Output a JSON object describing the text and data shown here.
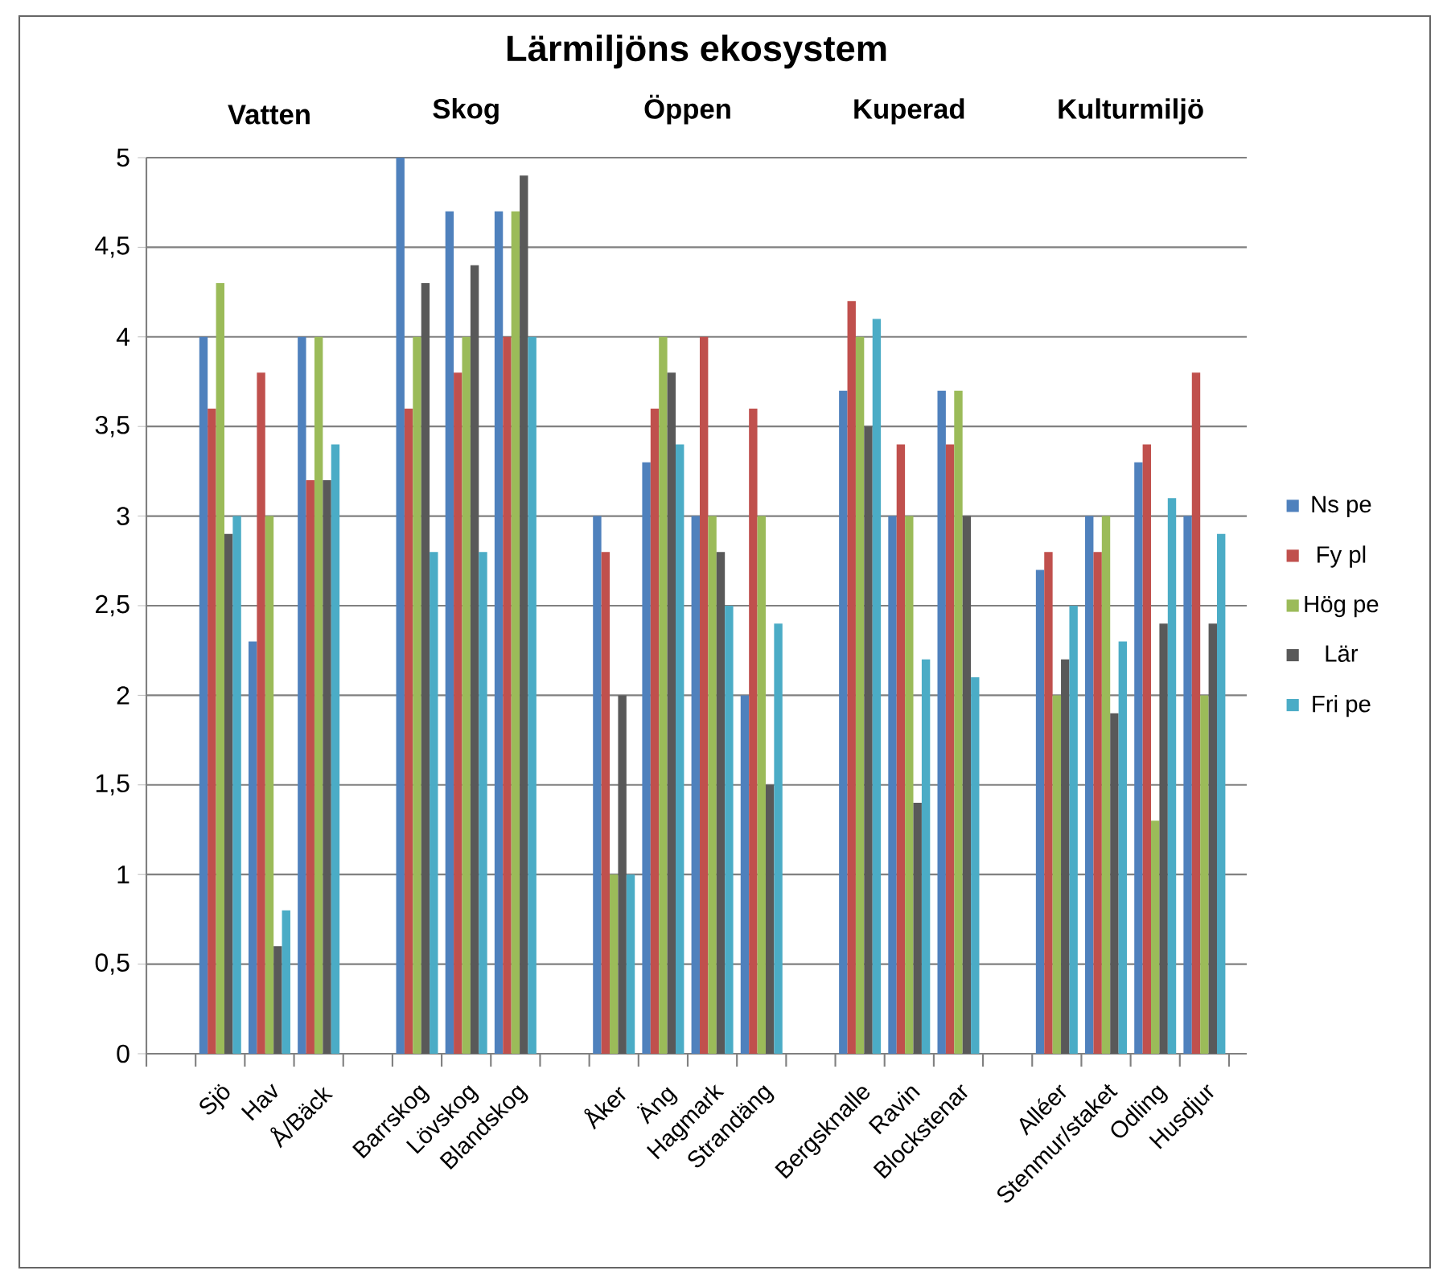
{
  "chart_data": {
    "type": "bar",
    "title": "Lärmiljöns ekosystem",
    "categories": [
      null,
      "Sjö",
      "Hav",
      "Å/Bäck",
      null,
      "Barrskog",
      "Lövskog",
      "Blandskog",
      null,
      "Åker",
      "Äng",
      "Hagmark",
      "Strandäng",
      null,
      "Bergsknalle",
      "Ravin",
      "Blockstenar",
      null,
      "Alléer",
      "Stenmur/staket",
      "Odling",
      "Husdjur"
    ],
    "series": [
      {
        "name": "Ns pe",
        "color": "#4f81bd",
        "values": [
          null,
          4.0,
          2.3,
          4.0,
          null,
          5.0,
          4.7,
          4.7,
          null,
          3.0,
          3.3,
          3.0,
          2.0,
          null,
          3.7,
          3.0,
          3.7,
          null,
          2.7,
          3.0,
          3.3,
          3.0
        ]
      },
      {
        "name": "Fy pl",
        "color": "#c0504d",
        "values": [
          null,
          3.6,
          3.8,
          3.2,
          null,
          3.6,
          3.8,
          4.0,
          null,
          2.8,
          3.6,
          4.0,
          3.6,
          null,
          4.2,
          3.4,
          3.4,
          null,
          2.8,
          2.8,
          3.4,
          3.8
        ]
      },
      {
        "name": "Hög pe",
        "color": "#9bbb59",
        "values": [
          null,
          4.3,
          3.0,
          4.0,
          null,
          4.0,
          4.0,
          4.7,
          null,
          1.0,
          4.0,
          3.0,
          3.0,
          null,
          4.0,
          3.0,
          3.7,
          null,
          2.0,
          3.0,
          1.3,
          2.0
        ]
      },
      {
        "name": "Lär",
        "color": "#595959",
        "values": [
          null,
          2.9,
          0.6,
          3.2,
          null,
          4.3,
          4.4,
          4.9,
          null,
          2.0,
          3.8,
          2.8,
          1.5,
          null,
          3.5,
          1.4,
          3.0,
          null,
          2.2,
          1.9,
          2.4,
          2.4
        ]
      },
      {
        "name": "Fri pe",
        "color": "#4bacc6",
        "values": [
          null,
          3.0,
          0.8,
          3.4,
          null,
          2.8,
          2.8,
          4.0,
          null,
          1.0,
          3.4,
          2.5,
          2.4,
          null,
          4.1,
          2.2,
          2.1,
          null,
          2.5,
          2.3,
          3.1,
          2.9
        ]
      }
    ],
    "annotations": [
      "Vatten",
      "Skog",
      "Öppen",
      "Kuperad",
      "Kulturmiljö"
    ],
    "ylim": [
      0,
      5
    ],
    "yticks": [
      0,
      {
        "value": 0.5,
        "label": "0,5"
      },
      1,
      {
        "value": 1.5,
        "label": "1,5"
      },
      2,
      {
        "value": 2.5,
        "label": "2,5"
      },
      3,
      {
        "value": 3.5,
        "label": "3,5"
      },
      4,
      {
        "value": 4.5,
        "label": "4,5"
      },
      5
    ],
    "grid": "y",
    "legend": "right"
  }
}
